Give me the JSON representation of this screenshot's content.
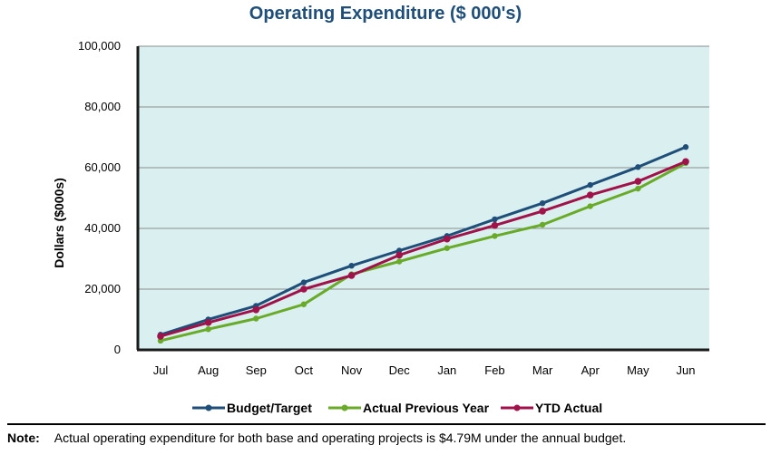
{
  "note": {
    "label": "Note:",
    "text": "Actual operating expenditure for both base and operating projects is $4.79M under the annual budget."
  },
  "chart_data": {
    "type": "line",
    "title": "Operating Expenditure ($ 000's)",
    "xlabel": "",
    "ylabel": "Dollars ($000s)",
    "categories": [
      "Jul",
      "Aug",
      "Sep",
      "Oct",
      "Nov",
      "Dec",
      "Jan",
      "Feb",
      "Mar",
      "Apr",
      "May",
      "Jun"
    ],
    "ylim": [
      0,
      100000
    ],
    "yticks": [
      0,
      20000,
      40000,
      60000,
      80000,
      100000
    ],
    "ytick_labels": [
      "0",
      "20,000",
      "40,000",
      "60,000",
      "80,000",
      "100,000"
    ],
    "grid": true,
    "legend_position": "bottom",
    "plot_background": "#daf0f0",
    "series": [
      {
        "name": "Budget/Target",
        "color": "#1f4e79",
        "values": [
          5000,
          10000,
          14500,
          22200,
          27700,
          32700,
          37500,
          43000,
          48300,
          54300,
          60200,
          66800
        ]
      },
      {
        "name": "Actual Previous Year",
        "color": "#6aaa2a",
        "values": [
          3000,
          6800,
          10300,
          15000,
          24900,
          29100,
          33500,
          37500,
          41200,
          47300,
          53100,
          61500
        ]
      },
      {
        "name": "YTD Actual",
        "color": "#a0124a",
        "values": [
          4500,
          9000,
          13200,
          20000,
          24500,
          31200,
          36500,
          41000,
          45700,
          51000,
          55500,
          62000
        ]
      }
    ]
  }
}
